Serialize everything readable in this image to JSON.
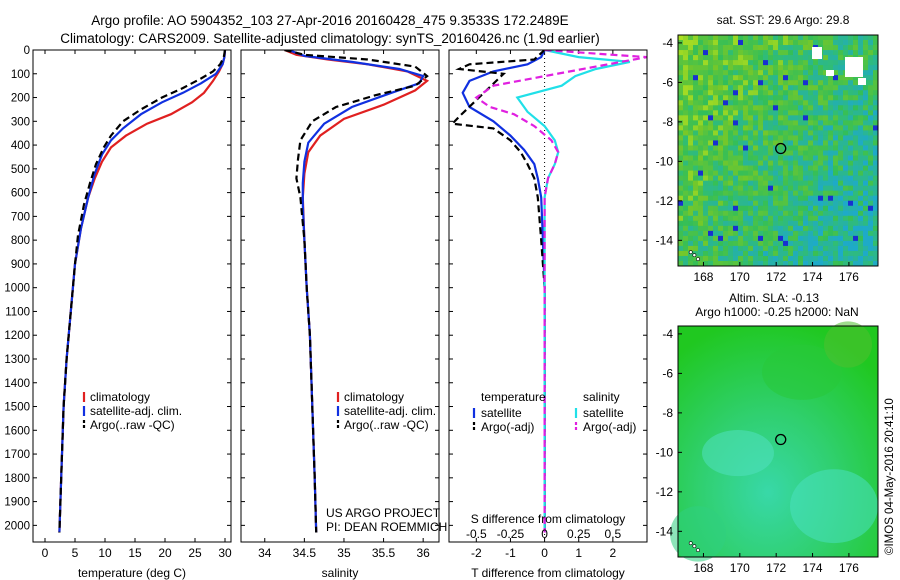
{
  "header": {
    "line1": "Argo profile: AO 5904352_103 27-Apr-2016 20160428_475 9.3533S 172.2489E",
    "line2": "Climatology: CARS2009. Satellite-adjusted climatology: synTS_20160426.nc (1.9d earlier)"
  },
  "colors": {
    "clim": "#e02020",
    "sat": "#1030e0",
    "argo": "#000000",
    "sat_s": "#20e0e8",
    "argo_s": "#e020e0"
  },
  "chart_data": [
    {
      "type": "line",
      "id": "temperature",
      "xlabel": "temperature (deg C)",
      "xlim": [
        -2,
        31
      ],
      "ylim": [
        2070,
        0
      ],
      "x_ticks": [
        0,
        5,
        10,
        15,
        20,
        25,
        30
      ],
      "y_ticks": [
        0,
        100,
        200,
        300,
        400,
        500,
        600,
        700,
        800,
        900,
        1000,
        1100,
        1200,
        1300,
        1400,
        1500,
        1600,
        1700,
        1800,
        1900,
        2000
      ],
      "legend": [
        "climatology",
        "satellite-adj. clim.",
        "Argo(..raw -QC)"
      ],
      "series": [
        {
          "name": "climatology",
          "color": "#e02020",
          "dash": false,
          "points": [
            [
              30,
              0
            ],
            [
              29.9,
              30
            ],
            [
              29.6,
              60
            ],
            [
              29,
              90
            ],
            [
              28,
              130
            ],
            [
              26.5,
              180
            ],
            [
              24.5,
              220
            ],
            [
              21,
              270
            ],
            [
              17,
              310
            ],
            [
              13.5,
              360
            ],
            [
              11,
              410
            ],
            [
              9.5,
              470
            ],
            [
              8.3,
              540
            ],
            [
              7.2,
              620
            ],
            [
              6,
              750
            ],
            [
              5,
              900
            ],
            [
              4.3,
              1100
            ],
            [
              3.6,
              1300
            ],
            [
              3.1,
              1500
            ],
            [
              2.7,
              1800
            ],
            [
              2.4,
              2030
            ]
          ]
        },
        {
          "name": "satellite-adj. clim.",
          "color": "#1030e0",
          "dash": false,
          "points": [
            [
              30,
              0
            ],
            [
              29.9,
              30
            ],
            [
              29.6,
              60
            ],
            [
              28.5,
              100
            ],
            [
              26,
              140
            ],
            [
              23,
              180
            ],
            [
              19.5,
              220
            ],
            [
              16,
              270
            ],
            [
              13,
              330
            ],
            [
              11,
              380
            ],
            [
              9.5,
              440
            ],
            [
              8.3,
              520
            ],
            [
              7.2,
              620
            ],
            [
              6,
              750
            ],
            [
              5,
              900
            ],
            [
              4.3,
              1100
            ],
            [
              3.6,
              1300
            ],
            [
              3.1,
              1500
            ],
            [
              2.7,
              1800
            ],
            [
              2.4,
              2030
            ]
          ]
        },
        {
          "name": "Argo(..raw -QC)",
          "color": "#000000",
          "dash": true,
          "points": [
            [
              30,
              0
            ],
            [
              29.8,
              30
            ],
            [
              29.2,
              60
            ],
            [
              28,
              90
            ],
            [
              26,
              120
            ],
            [
              23,
              160
            ],
            [
              19.5,
              200
            ],
            [
              16,
              250
            ],
            [
              13,
              300
            ],
            [
              11,
              360
            ],
            [
              9.8,
              410
            ],
            [
              8.5,
              480
            ],
            [
              7.5,
              560
            ],
            [
              6.5,
              650
            ],
            [
              5.5,
              780
            ],
            [
              5,
              900
            ],
            [
              4.3,
              1100
            ],
            [
              3.6,
              1300
            ],
            [
              3.1,
              1500
            ],
            [
              2.7,
              1800
            ],
            [
              2.4,
              2030
            ]
          ]
        }
      ]
    },
    {
      "type": "line",
      "id": "salinity",
      "xlabel": "salinity",
      "xlim": [
        33.7,
        36.2
      ],
      "ylim": [
        2070,
        0
      ],
      "x_ticks": [
        34,
        34.5,
        35,
        35.5,
        36
      ],
      "legend": [
        "climatology",
        "satellite-adj. clim.",
        "Argo(..raw -QC)"
      ],
      "series": [
        {
          "name": "climatology",
          "color": "#e02020",
          "dash": false,
          "points": [
            [
              34.25,
              0
            ],
            [
              34.4,
              20
            ],
            [
              34.8,
              40
            ],
            [
              35.3,
              60
            ],
            [
              35.8,
              90
            ],
            [
              36.05,
              130
            ],
            [
              35.9,
              170
            ],
            [
              35.5,
              230
            ],
            [
              35.0,
              290
            ],
            [
              34.7,
              360
            ],
            [
              34.55,
              430
            ],
            [
              34.5,
              520
            ],
            [
              34.48,
              620
            ],
            [
              34.5,
              800
            ],
            [
              34.53,
              1000
            ],
            [
              34.57,
              1200
            ],
            [
              34.6,
              1500
            ],
            [
              34.63,
              1800
            ],
            [
              34.65,
              2030
            ]
          ]
        },
        {
          "name": "satellite-adj. clim.",
          "color": "#1030e0",
          "dash": false,
          "points": [
            [
              34.3,
              0
            ],
            [
              34.5,
              25
            ],
            [
              35.1,
              50
            ],
            [
              35.7,
              80
            ],
            [
              36.0,
              110
            ],
            [
              35.95,
              140
            ],
            [
              35.6,
              180
            ],
            [
              35.1,
              240
            ],
            [
              34.75,
              310
            ],
            [
              34.55,
              390
            ],
            [
              34.5,
              470
            ],
            [
              34.48,
              560
            ],
            [
              34.48,
              650
            ],
            [
              34.5,
              800
            ],
            [
              34.53,
              1000
            ],
            [
              34.57,
              1200
            ],
            [
              34.6,
              1500
            ],
            [
              34.63,
              1800
            ],
            [
              34.65,
              2030
            ]
          ]
        },
        {
          "name": "Argo(..raw -QC)",
          "color": "#000000",
          "dash": true,
          "points": [
            [
              34.25,
              0
            ],
            [
              34.5,
              20
            ],
            [
              35.3,
              40
            ],
            [
              35.9,
              70
            ],
            [
              36.05,
              110
            ],
            [
              35.9,
              150
            ],
            [
              35.4,
              190
            ],
            [
              34.9,
              240
            ],
            [
              34.6,
              300
            ],
            [
              34.45,
              380
            ],
            [
              34.42,
              460
            ],
            [
              34.4,
              540
            ],
            [
              34.45,
              620
            ],
            [
              34.5,
              800
            ],
            [
              34.53,
              1000
            ],
            [
              34.57,
              1200
            ],
            [
              34.6,
              1500
            ],
            [
              34.63,
              1800
            ],
            [
              34.65,
              2030
            ]
          ]
        }
      ]
    },
    {
      "type": "line",
      "id": "difference",
      "xlabel_top": "S difference from climatology",
      "xlabel": "T difference from climatology",
      "xlim": [
        -2.8,
        3.0
      ],
      "ylim": [
        2070,
        0
      ],
      "x_ticks": [
        -2,
        -1,
        0,
        1,
        2
      ],
      "top_ticks": [
        {
          "label": "-0.5",
          "t": -2
        },
        {
          "label": "-0.25",
          "t": -1
        },
        {
          "label": "0",
          "t": 0
        },
        {
          "label": "0.25",
          "t": 1
        },
        {
          "label": "0.5",
          "t": 2
        }
      ],
      "legend_titles": [
        "temperature",
        "salinity"
      ],
      "legend": [
        {
          "label": "satellite",
          "color": "#1030e0",
          "dash": false
        },
        {
          "label": "Argo(-adj)",
          "color": "#000000",
          "dash": true
        },
        {
          "label": "satellite",
          "color": "#20e0e8",
          "dash": false
        },
        {
          "label": "Argo(-adj)",
          "color": "#e020e0",
          "dash": true
        }
      ],
      "series": [
        {
          "name": "T satellite",
          "color": "#1030e0",
          "dash": false,
          "points": [
            [
              0,
              0
            ],
            [
              -0.1,
              30
            ],
            [
              -0.5,
              60
            ],
            [
              -1.5,
              90
            ],
            [
              -2.2,
              130
            ],
            [
              -2.4,
              180
            ],
            [
              -2.2,
              240
            ],
            [
              -1.5,
              300
            ],
            [
              -1.0,
              360
            ],
            [
              -0.6,
              420
            ],
            [
              -0.3,
              480
            ],
            [
              -0.2,
              540
            ],
            [
              -0.1,
              620
            ],
            [
              -0.05,
              800
            ],
            [
              0,
              1000
            ],
            [
              0,
              1400
            ],
            [
              0,
              2030
            ]
          ]
        },
        {
          "name": "T Argo",
          "color": "#000000",
          "dash": true,
          "points": [
            [
              0,
              0
            ],
            [
              -0.3,
              40
            ],
            [
              -2.2,
              60
            ],
            [
              -2.5,
              80
            ],
            [
              -1.2,
              100
            ],
            [
              -2.5,
              280
            ],
            [
              -2.7,
              310
            ],
            [
              -1.5,
              330
            ],
            [
              -1.0,
              380
            ],
            [
              -0.7,
              430
            ],
            [
              -0.5,
              480
            ],
            [
              -0.3,
              540
            ],
            [
              -0.2,
              620
            ],
            [
              -0.1,
              800
            ],
            [
              0,
              1000
            ],
            [
              0,
              1400
            ],
            [
              0,
              2030
            ]
          ]
        },
        {
          "name": "S satellite",
          "color": "#20e0e8",
          "dash": false,
          "points": [
            [
              0,
              0
            ],
            [
              1.0,
              30
            ],
            [
              2.5,
              50
            ],
            [
              1.5,
              80
            ],
            [
              0.9,
              110
            ],
            [
              0.5,
              150
            ],
            [
              -0.8,
              200
            ],
            [
              -0.5,
              260
            ],
            [
              0,
              320
            ],
            [
              0.3,
              380
            ],
            [
              0.4,
              430
            ],
            [
              0.3,
              480
            ],
            [
              0.1,
              540
            ],
            [
              0,
              620
            ],
            [
              0,
              800
            ],
            [
              0,
              1000
            ],
            [
              0,
              2030
            ]
          ]
        },
        {
          "name": "S Argo",
          "color": "#e020e0",
          "dash": true,
          "points": [
            [
              0,
              0
            ],
            [
              2.0,
              20
            ],
            [
              3.0,
              30
            ],
            [
              1.5,
              70
            ],
            [
              0.0,
              110
            ],
            [
              -1.5,
              150
            ],
            [
              -2.0,
              200
            ],
            [
              -1.6,
              240
            ],
            [
              -0.9,
              270
            ],
            [
              -0.3,
              320
            ],
            [
              0.2,
              380
            ],
            [
              0.4,
              430
            ],
            [
              0.3,
              480
            ],
            [
              0.1,
              540
            ],
            [
              0,
              620
            ],
            [
              0,
              800
            ],
            [
              0,
              2030
            ]
          ]
        }
      ]
    },
    {
      "type": "heatmap",
      "id": "sst-map",
      "title": "sat. SST: 29.6  Argo: 29.8",
      "xlim": [
        166.6,
        177.6
      ],
      "ylim": [
        -15.3,
        -3.6
      ],
      "x_ticks": [
        168,
        170,
        172,
        174,
        176
      ],
      "y_ticks": [
        -4,
        -6,
        -8,
        -10,
        -12,
        -14
      ],
      "marker": [
        172.25,
        -9.35
      ]
    },
    {
      "type": "heatmap",
      "id": "sla-map",
      "title": "Altim. SLA: -0.13",
      "subtitle": "Argo h1000: -0.25 h2000: NaN",
      "xlim": [
        166.6,
        177.6
      ],
      "ylim": [
        -15.3,
        -3.6
      ],
      "x_ticks": [
        168,
        170,
        172,
        174,
        176
      ],
      "y_ticks": [
        -4,
        -6,
        -8,
        -10,
        -12,
        -14
      ],
      "marker": [
        172.25,
        -9.35
      ]
    }
  ],
  "annotations": {
    "project_line1": "US ARGO PROJECT",
    "project_line2": "PI: DEAN ROEMMICH",
    "credit": "©IMOS 04-May-2016 20:41:10"
  }
}
